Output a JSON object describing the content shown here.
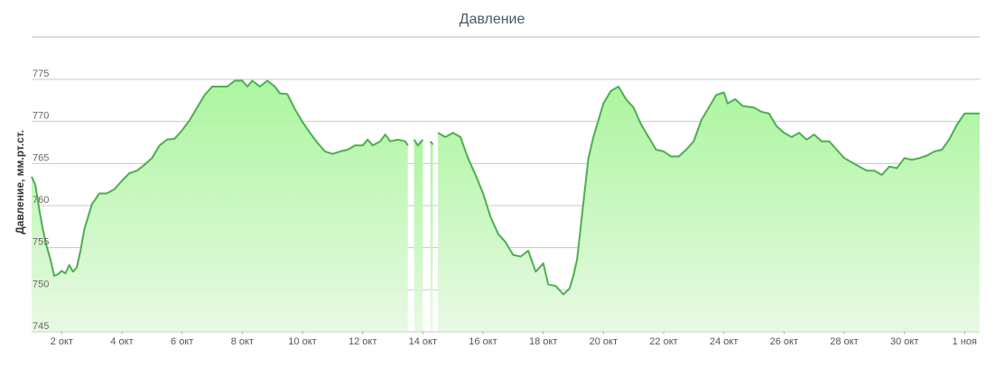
{
  "chart_data": {
    "type": "area",
    "title": "Давление",
    "ylabel": "Давление, мм.рт.ст.",
    "xlabel": "",
    "ylim": [
      745,
      775
    ],
    "yticks": [
      745,
      750,
      755,
      760,
      765,
      770,
      775
    ],
    "grid": true,
    "legend": "none",
    "xlim": [
      "2015-10-01",
      "2015-11-01T12:00"
    ],
    "xticks": [
      {
        "date": "2015-10-02",
        "label": "2 окт"
      },
      {
        "date": "2015-10-04",
        "label": "4 окт"
      },
      {
        "date": "2015-10-06",
        "label": "6 окт"
      },
      {
        "date": "2015-10-08",
        "label": "8 окт"
      },
      {
        "date": "2015-10-10",
        "label": "10 окт"
      },
      {
        "date": "2015-10-12",
        "label": "12 окт"
      },
      {
        "date": "2015-10-14",
        "label": "14 окт"
      },
      {
        "date": "2015-10-16",
        "label": "16 окт"
      },
      {
        "date": "2015-10-18",
        "label": "18 окт"
      },
      {
        "date": "2015-10-20",
        "label": "20 окт"
      },
      {
        "date": "2015-10-22",
        "label": "22 окт"
      },
      {
        "date": "2015-10-24",
        "label": "24 окт"
      },
      {
        "date": "2015-10-26",
        "label": "26 окт"
      },
      {
        "date": "2015-10-28",
        "label": "28 окт"
      },
      {
        "date": "2015-10-30",
        "label": "30 окт"
      },
      {
        "date": "2015-11-01",
        "label": "1 ноя"
      }
    ],
    "series": [
      {
        "color": "#4caf50",
        "segments": [
          [
            [
              "2015-10-01T00:00",
              762.8
            ],
            [
              "2015-10-01T03:00",
              761.8
            ],
            [
              "2015-10-01T06:00",
              759.0
            ],
            [
              "2015-10-01T09:00",
              756.5
            ],
            [
              "2015-10-01T12:00",
              754.5
            ],
            [
              "2015-10-01T15:00",
              753.0
            ],
            [
              "2015-10-01T18:00",
              751.0
            ],
            [
              "2015-10-01T21:00",
              751.2
            ],
            [
              "2015-10-02T00:00",
              751.6
            ],
            [
              "2015-10-02T03:00",
              751.3
            ],
            [
              "2015-10-02T06:00",
              752.3
            ],
            [
              "2015-10-02T09:00",
              751.5
            ],
            [
              "2015-10-02T12:00",
              752.0
            ],
            [
              "2015-10-02T15:00",
              754.0
            ],
            [
              "2015-10-02T18:00",
              756.5
            ],
            [
              "2015-10-02T21:00",
              758.0
            ],
            [
              "2015-10-03T00:00",
              759.5
            ],
            [
              "2015-10-03T06:00",
              760.8
            ],
            [
              "2015-10-03T12:00",
              760.8
            ],
            [
              "2015-10-03T18:00",
              761.3
            ],
            [
              "2015-10-04T00:00",
              762.3
            ],
            [
              "2015-10-04T06:00",
              763.2
            ],
            [
              "2015-10-04T12:00",
              763.5
            ],
            [
              "2015-10-04T18:00",
              764.2
            ],
            [
              "2015-10-05T00:00",
              765.0
            ],
            [
              "2015-10-05T06:00",
              766.5
            ],
            [
              "2015-10-05T12:00",
              767.2
            ],
            [
              "2015-10-05T18:00",
              767.3
            ],
            [
              "2015-10-06T00:00",
              768.3
            ],
            [
              "2015-10-06T06:00",
              769.5
            ],
            [
              "2015-10-06T12:00",
              771.0
            ],
            [
              "2015-10-06T18:00",
              772.5
            ],
            [
              "2015-10-07T00:00",
              773.5
            ],
            [
              "2015-10-07T06:00",
              773.5
            ],
            [
              "2015-10-07T12:00",
              773.5
            ],
            [
              "2015-10-07T18:00",
              774.2
            ],
            [
              "2015-10-08T00:00",
              774.2
            ],
            [
              "2015-10-08T04:00",
              773.5
            ],
            [
              "2015-10-08T08:00",
              774.2
            ],
            [
              "2015-10-08T14:00",
              773.5
            ],
            [
              "2015-10-08T20:00",
              774.2
            ],
            [
              "2015-10-09T02:00",
              773.5
            ],
            [
              "2015-10-09T06:00",
              772.7
            ],
            [
              "2015-10-09T12:00",
              772.6
            ],
            [
              "2015-10-09T18:00",
              770.8
            ],
            [
              "2015-10-10T00:00",
              769.3
            ],
            [
              "2015-10-10T06:00",
              768.0
            ],
            [
              "2015-10-10T12:00",
              766.8
            ],
            [
              "2015-10-10T18:00",
              765.8
            ],
            [
              "2015-10-11T00:00",
              765.5
            ],
            [
              "2015-10-11T06:00",
              765.8
            ],
            [
              "2015-10-11T12:00",
              766.0
            ],
            [
              "2015-10-11T18:00",
              766.5
            ],
            [
              "2015-10-12T00:00",
              766.5
            ],
            [
              "2015-10-12T04:00",
              767.2
            ],
            [
              "2015-10-12T08:00",
              766.5
            ],
            [
              "2015-10-12T14:00",
              767.0
            ],
            [
              "2015-10-12T18:00",
              767.8
            ],
            [
              "2015-10-12T22:00",
              767.0
            ],
            [
              "2015-10-13T04:00",
              767.2
            ],
            [
              "2015-10-13T10:00",
              767.0
            ],
            [
              "2015-10-13T12:00",
              766.5
            ]
          ],
          [
            [
              "2015-10-13T17:00",
              767.2
            ],
            [
              "2015-10-13T20:00",
              766.5
            ],
            [
              "2015-10-14T00:00",
              767.2
            ]
          ],
          [
            [
              "2015-10-14T06:00",
              767.0
            ],
            [
              "2015-10-14T08:00",
              766.6
            ]
          ],
          [
            [
              "2015-10-14T12:00",
              768.0
            ],
            [
              "2015-10-14T18:00",
              767.5
            ],
            [
              "2015-10-15T00:00",
              768.0
            ],
            [
              "2015-10-15T06:00",
              767.5
            ],
            [
              "2015-10-15T12:00",
              765.0
            ],
            [
              "2015-10-15T18:00",
              763.0
            ],
            [
              "2015-10-16T00:00",
              760.8
            ],
            [
              "2015-10-16T06:00",
              758.0
            ],
            [
              "2015-10-16T12:00",
              756.0
            ],
            [
              "2015-10-16T18:00",
              755.0
            ],
            [
              "2015-10-17T00:00",
              753.5
            ],
            [
              "2015-10-17T06:00",
              753.3
            ],
            [
              "2015-10-17T12:00",
              754.0
            ],
            [
              "2015-10-17T18:00",
              751.5
            ],
            [
              "2015-10-18T00:00",
              752.5
            ],
            [
              "2015-10-18T04:00",
              750.0
            ],
            [
              "2015-10-18T10:00",
              749.8
            ],
            [
              "2015-10-18T16:00",
              748.8
            ],
            [
              "2015-10-18T21:00",
              749.5
            ],
            [
              "2015-10-19T00:00",
              751.0
            ],
            [
              "2015-10-19T03:00",
              753.0
            ],
            [
              "2015-10-19T06:00",
              757.0
            ],
            [
              "2015-10-19T09:00",
              761.0
            ],
            [
              "2015-10-19T12:00",
              765.0
            ],
            [
              "2015-10-19T16:00",
              767.5
            ],
            [
              "2015-10-19T20:00",
              769.5
            ],
            [
              "2015-10-20T00:00",
              771.5
            ],
            [
              "2015-10-20T06:00",
              773.0
            ],
            [
              "2015-10-20T12:00",
              773.5
            ],
            [
              "2015-10-20T18:00",
              772.0
            ],
            [
              "2015-10-21T00:00",
              771.0
            ],
            [
              "2015-10-21T06:00",
              769.0
            ],
            [
              "2015-10-21T12:00",
              767.5
            ],
            [
              "2015-10-21T18:00",
              766.0
            ],
            [
              "2015-10-22T00:00",
              765.8
            ],
            [
              "2015-10-22T06:00",
              765.2
            ],
            [
              "2015-10-22T12:00",
              765.2
            ],
            [
              "2015-10-22T18:00",
              766.0
            ],
            [
              "2015-10-23T00:00",
              767.0
            ],
            [
              "2015-10-23T06:00",
              769.5
            ],
            [
              "2015-10-23T12:00",
              771.0
            ],
            [
              "2015-10-23T18:00",
              772.5
            ],
            [
              "2015-10-24T00:00",
              772.8
            ],
            [
              "2015-10-24T03:00",
              771.5
            ],
            [
              "2015-10-24T09:00",
              772.0
            ],
            [
              "2015-10-24T15:00",
              771.2
            ],
            [
              "2015-10-25T00:00",
              771.0
            ],
            [
              "2015-10-25T06:00",
              770.5
            ],
            [
              "2015-10-25T12:00",
              770.3
            ],
            [
              "2015-10-25T18:00",
              768.8
            ],
            [
              "2015-10-26T00:00",
              768.0
            ],
            [
              "2015-10-26T06:00",
              767.5
            ],
            [
              "2015-10-26T12:00",
              768.0
            ],
            [
              "2015-10-26T18:00",
              767.2
            ],
            [
              "2015-10-27T00:00",
              767.8
            ],
            [
              "2015-10-27T06:00",
              767.0
            ],
            [
              "2015-10-27T12:00",
              767.0
            ],
            [
              "2015-10-27T18:00",
              766.0
            ],
            [
              "2015-10-28T00:00",
              765.0
            ],
            [
              "2015-10-28T06:00",
              764.5
            ],
            [
              "2015-10-28T12:00",
              764.0
            ],
            [
              "2015-10-28T18:00",
              763.5
            ],
            [
              "2015-10-29T00:00",
              763.5
            ],
            [
              "2015-10-29T06:00",
              763.0
            ],
            [
              "2015-10-29T12:00",
              764.0
            ],
            [
              "2015-10-29T18:00",
              763.8
            ],
            [
              "2015-10-30T00:00",
              765.0
            ],
            [
              "2015-10-30T06:00",
              764.8
            ],
            [
              "2015-10-30T12:00",
              765.0
            ],
            [
              "2015-10-30T18:00",
              765.3
            ],
            [
              "2015-10-31T00:00",
              765.8
            ],
            [
              "2015-10-31T06:00",
              766.0
            ],
            [
              "2015-10-31T12:00",
              767.3
            ],
            [
              "2015-10-31T18:00",
              769.0
            ],
            [
              "2015-11-01T00:00",
              770.3
            ],
            [
              "2015-11-01T12:00",
              770.3
            ]
          ]
        ]
      }
    ]
  }
}
